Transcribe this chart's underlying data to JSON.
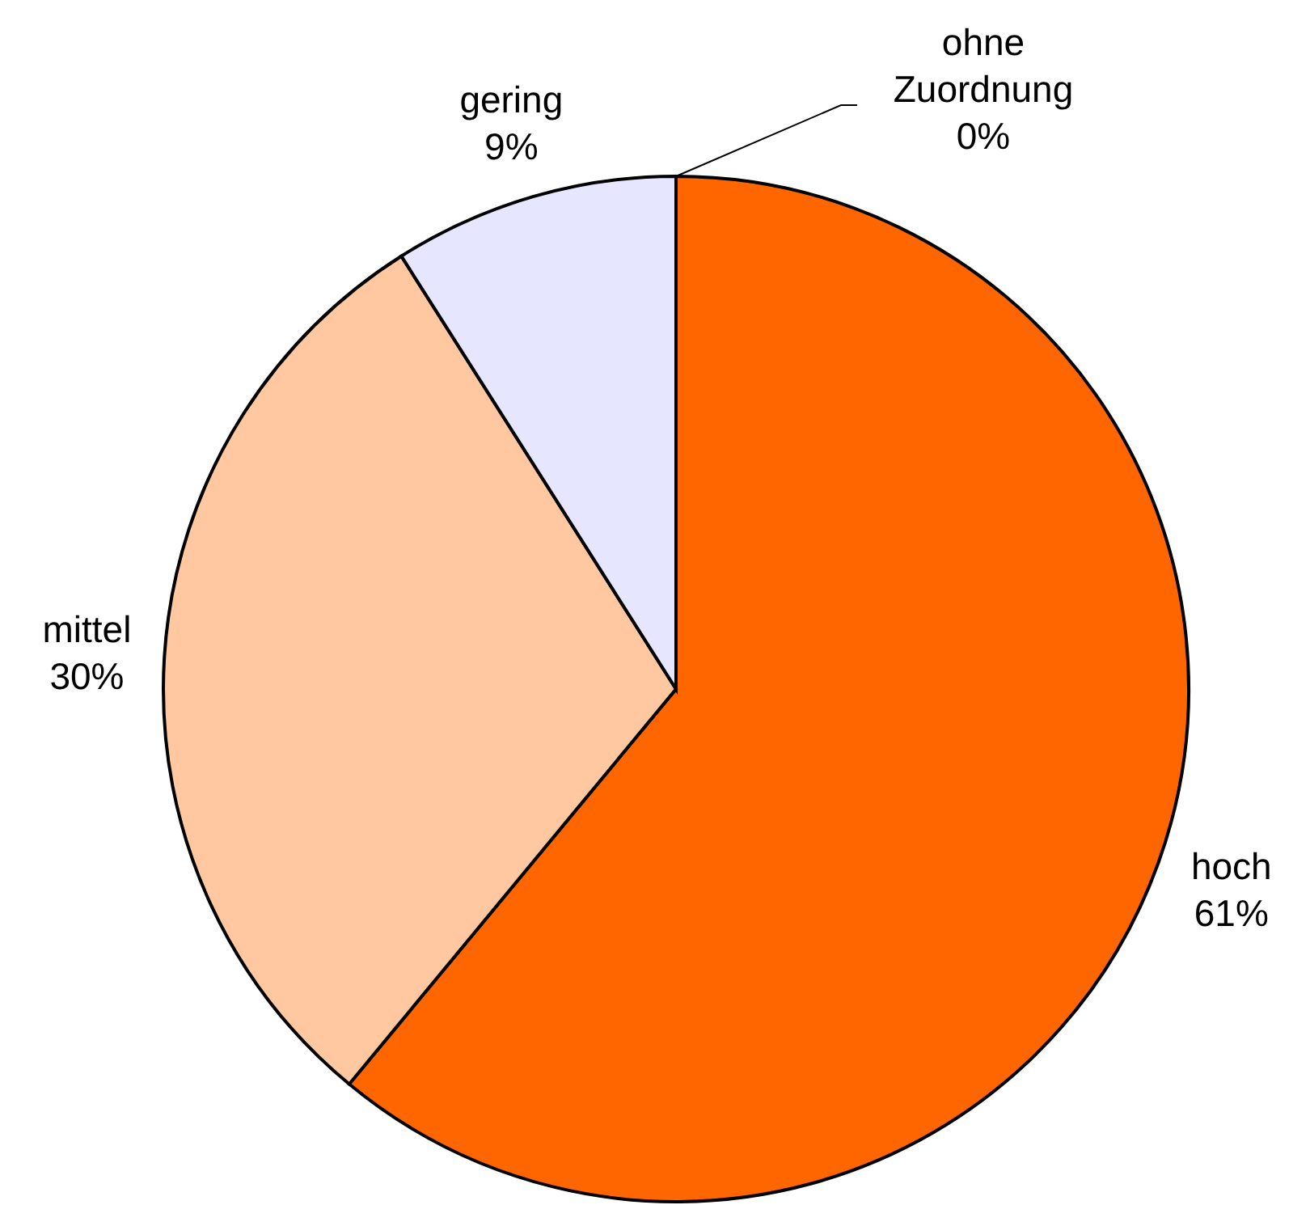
{
  "chart_data": {
    "type": "pie",
    "categories": [
      "hoch",
      "mittel",
      "gering",
      "ohne Zuordnung"
    ],
    "values": [
      61,
      30,
      9,
      0
    ],
    "colors": [
      "#ff6600",
      "#ffc8a0",
      "#e6e6ff",
      "#c0c0c0"
    ],
    "value_labels": [
      "61%",
      "30%",
      "9%",
      "0%"
    ]
  }
}
